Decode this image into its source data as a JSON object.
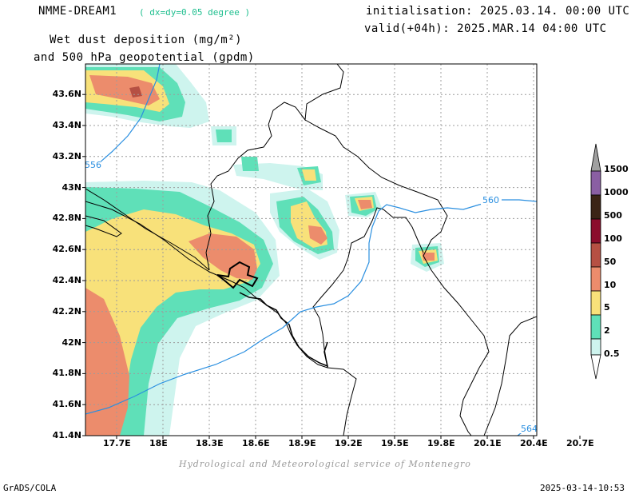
{
  "header": {
    "model": "NMME-DREAM1",
    "resolution": "( dx=dy=0.05 degree )",
    "init": "initialisation: 2025.03.14. 00:00 UTC",
    "valid": "valid(+04h): 2025.MAR.14 04:00 UTC",
    "title_line1": "Wet dust deposition (mg/m²)",
    "title_line2": "and 500 hPa geopotential (gpdm)"
  },
  "map": {
    "lon_labels": [
      "17.7E",
      "18E",
      "18.3E",
      "18.6E",
      "18.9E",
      "19.2E",
      "19.5E",
      "19.8E",
      "20.1E",
      "20.4E",
      "20.7E"
    ],
    "lat_labels": [
      "43.6N",
      "43.4N",
      "43.2N",
      "43N",
      "42.8N",
      "42.6N",
      "42.4N",
      "42.2N",
      "42N",
      "41.8N",
      "41.6N",
      "41.4N"
    ],
    "contour_labels": [
      "556",
      "560",
      "564"
    ],
    "credit": "Hydrological and Meteorological service of Montenegro"
  },
  "legend": {
    "levels": [
      "1500",
      "1000",
      "500",
      "100",
      "50",
      "10",
      "5",
      "2",
      "0.5"
    ],
    "colors": {
      "l0_5": "#cef4ee",
      "l2": "#5fe0b8",
      "l5": "#f8e17a",
      "l10": "#ec8c6c",
      "l50": "#b65043",
      "l100": "#8b0d2c",
      "l500": "#3b2416",
      "l1000": "#8a5fa3",
      "l1500": "#a0a0a0"
    }
  },
  "footer": {
    "left": "GrADS/COLA",
    "right": "2025-03-14-10:53"
  }
}
